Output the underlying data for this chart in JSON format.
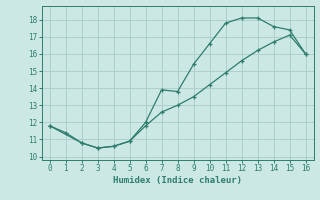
{
  "xlabel": "Humidex (Indice chaleur)",
  "xlim": [
    -0.5,
    16.5
  ],
  "ylim": [
    9.8,
    18.8
  ],
  "yticks": [
    10,
    11,
    12,
    13,
    14,
    15,
    16,
    17,
    18
  ],
  "xticks": [
    0,
    1,
    2,
    3,
    4,
    5,
    6,
    7,
    8,
    9,
    10,
    11,
    12,
    13,
    14,
    15,
    16
  ],
  "line_color": "#2e7d6e",
  "bg_color": "#cce8e5",
  "grid_color": "#aecfcc",
  "upper_x": [
    0,
    1,
    2,
    3,
    4,
    5,
    6,
    7,
    8,
    9,
    10,
    11,
    12,
    13,
    14,
    15,
    16
  ],
  "upper_y": [
    11.8,
    11.4,
    10.8,
    10.5,
    10.6,
    10.9,
    12.0,
    13.9,
    13.8,
    15.4,
    16.6,
    17.8,
    18.1,
    18.1,
    17.6,
    17.4,
    16.0
  ],
  "lower_x": [
    0,
    2,
    3,
    4,
    5,
    6,
    7,
    8,
    9,
    10,
    11,
    12,
    13,
    14,
    15,
    16
  ],
  "lower_y": [
    11.8,
    10.8,
    10.5,
    10.6,
    10.9,
    11.8,
    12.6,
    13.0,
    13.5,
    14.2,
    14.9,
    15.6,
    16.2,
    16.7,
    17.1,
    16.0
  ]
}
